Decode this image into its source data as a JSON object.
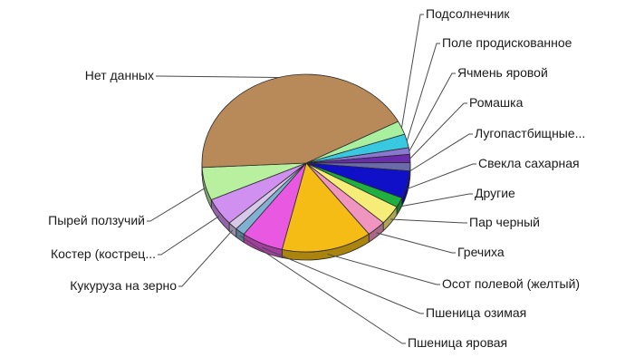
{
  "chart_data": {
    "type": "pie",
    "title": "",
    "legend": "none",
    "slices": [
      {
        "label": "Подсолнечник",
        "value": 2.5,
        "color": "#a8f0a0"
      },
      {
        "label": "Поле продискованное",
        "value": 2.5,
        "color": "#38c8e0"
      },
      {
        "label": "Ячмень яровой",
        "value": 1.2,
        "color": "#8a78d0"
      },
      {
        "label": "Ромашка",
        "value": 1.5,
        "color": "#6a2cae"
      },
      {
        "label": "Лугопастбищные...",
        "value": 1.5,
        "color": "#6a6aa8"
      },
      {
        "label": "Свекла сахарная",
        "value": 5.0,
        "color": "#1010c8"
      },
      {
        "label": "Другие",
        "value": 1.8,
        "color": "#20b040"
      },
      {
        "label": "Пар черный",
        "value": 3.5,
        "color": "#f6ec78"
      },
      {
        "label": "Гречиха",
        "value": 3.0,
        "color": "#f094c0"
      },
      {
        "label": "Осот полевой (желтый)",
        "value": 14.0,
        "color": "#f4bc14"
      },
      {
        "label": "Пшеница озимая",
        "value": 6.5,
        "color": "#e858e0"
      },
      {
        "label": "Пшеница яровая",
        "value": 1.5,
        "color": "#7fb1d2"
      },
      {
        "label": "Кукуруза на зерно",
        "value": 1.5,
        "color": "#d8c8e8"
      },
      {
        "label": "Костер (кострец...",
        "value": 5.0,
        "color": "#d090f0"
      },
      {
        "label": "Пырей ползучий",
        "value": 6.0,
        "color": "#b8f0a0"
      },
      {
        "label": "Нет данных",
        "value": 43.0,
        "color": "#b88a5a"
      }
    ]
  }
}
